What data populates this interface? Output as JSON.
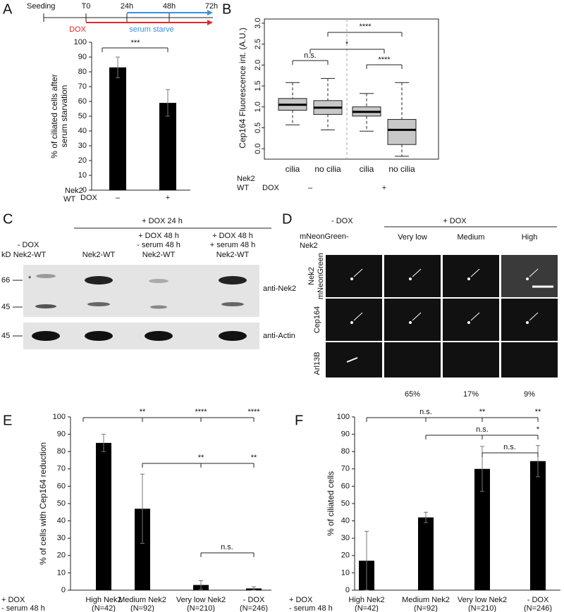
{
  "panel_labels": [
    "A",
    "B",
    "C",
    "D",
    "E",
    "F"
  ],
  "timeline": {
    "labels": [
      "Seeding",
      "T0",
      "24h",
      "48h",
      "72h"
    ],
    "dox": "DOX",
    "serum": "serum starve",
    "dox_color": "#e8262a",
    "serum_color": "#3b8fd9"
  },
  "blot": {
    "kd": "kD",
    "neg_header": [
      "- DOX",
      "Nek2-WT"
    ],
    "dox_header": "+ DOX 24 h",
    "lane3_header": [
      "+ DOX 48 h",
      "- serum 48 h"
    ],
    "lane4_header": [
      "+ DOX 48 h",
      "+ serum 48 h"
    ],
    "lane_label": "Nek2-WT",
    "markers": [
      "66",
      "45",
      "45"
    ],
    "star": "*",
    "antibodies": [
      "anti-Nek2",
      "anti-Actin"
    ]
  },
  "microscopy": {
    "neg": "- DOX",
    "pos": "+ DOX",
    "construct": [
      "mNeonGreen-",
      "Nek2"
    ],
    "columns": [
      "Very low",
      "Medium",
      "High"
    ],
    "rows": [
      [
        "Nek2",
        "mNeonGreen"
      ],
      [
        "Cep164"
      ],
      [
        "Arl13B"
      ]
    ],
    "percentages": [
      "65%",
      "17%",
      "9%"
    ]
  },
  "chart_data": [
    {
      "type": "bar",
      "y_label": [
        "% of ciliated cells after",
        "serum starvation"
      ],
      "categories": [
        "–",
        "+"
      ],
      "row_labels": [
        "Nek2",
        "WT",
        "DOX"
      ],
      "values": [
        83,
        59
      ],
      "errors": [
        7,
        9
      ],
      "color": "#000000",
      "ylim": [
        0,
        100
      ],
      "yticks": [
        0,
        10,
        20,
        30,
        40,
        50,
        60,
        70,
        80,
        90,
        100
      ],
      "significance": [
        "***"
      ]
    },
    {
      "type": "box",
      "y_label": [
        "Cep164 Fluorescence int. (A.U.)"
      ],
      "categories": [
        "cilia",
        "no cilia",
        "cilia",
        "no cilia"
      ],
      "row_labels": [
        "Nek2",
        "WT",
        "DOX"
      ],
      "group_labels": [
        "–",
        "+"
      ],
      "whisker_low": [
        0.57,
        0.45,
        0.42,
        -0.18
      ],
      "q1": [
        0.92,
        0.82,
        0.78,
        0.1
      ],
      "median": [
        1.05,
        0.98,
        0.88,
        0.45
      ],
      "q3": [
        1.2,
        1.15,
        1.0,
        0.7
      ],
      "whisker_high": [
        1.58,
        1.68,
        1.32,
        1.58
      ],
      "color": "#c8c8c8",
      "ylim": [
        -0.25,
        3.1
      ],
      "yticks": [
        {
          "value": 0,
          "label": "0.0"
        },
        0.5,
        {
          "value": 1,
          "label": "1.0"
        },
        1.5,
        {
          "value": 2,
          "label": "2.0"
        },
        2.5,
        {
          "value": 3,
          "label": "3.0"
        }
      ],
      "significance": [
        "n.s.",
        "*",
        "****",
        "****"
      ]
    },
    {
      "type": "bar",
      "y_label": [
        "% of cells with Cep164 reduction"
      ],
      "categories": [
        "High Nek2",
        "Medium Nek2",
        "Very low Nek2",
        "- DOX"
      ],
      "sample_sizes": [
        "(N=42)",
        "(N=92)",
        "(N=210)",
        "(N=246)"
      ],
      "row_labels": [
        "+ DOX",
        "- serum 48 h"
      ],
      "values": [
        85,
        47,
        3,
        1
      ],
      "errors": [
        5,
        20,
        2.5,
        1
      ],
      "color": "#000000",
      "ylim": [
        0,
        100
      ],
      "yticks": [
        0,
        10,
        20,
        30,
        40,
        50,
        60,
        70,
        80,
        90,
        100
      ],
      "significance": [
        "**",
        "****",
        "****",
        "**",
        "**",
        "n.s."
      ]
    },
    {
      "type": "bar",
      "y_label": [
        "% of ciliated cells"
      ],
      "categories": [
        "High Nek2",
        "Medium Nek2",
        "Very low Nek2",
        "- DOX"
      ],
      "sample_sizes": [
        "(N=42)",
        "(N=92)",
        "(N=210)",
        "(N=246)"
      ],
      "row_labels": [
        "+ DOX",
        "- serum 48 h"
      ],
      "values": [
        17,
        42,
        70,
        74.5
      ],
      "errors": [
        17,
        3,
        13,
        9
      ],
      "color": "#000000",
      "ylim": [
        0,
        100
      ],
      "yticks": [
        0,
        10,
        20,
        30,
        40,
        50,
        60,
        70,
        80,
        90,
        100
      ],
      "significance": [
        "n.s.",
        "**",
        "**",
        "n.s.",
        "*",
        "n.s."
      ]
    }
  ]
}
